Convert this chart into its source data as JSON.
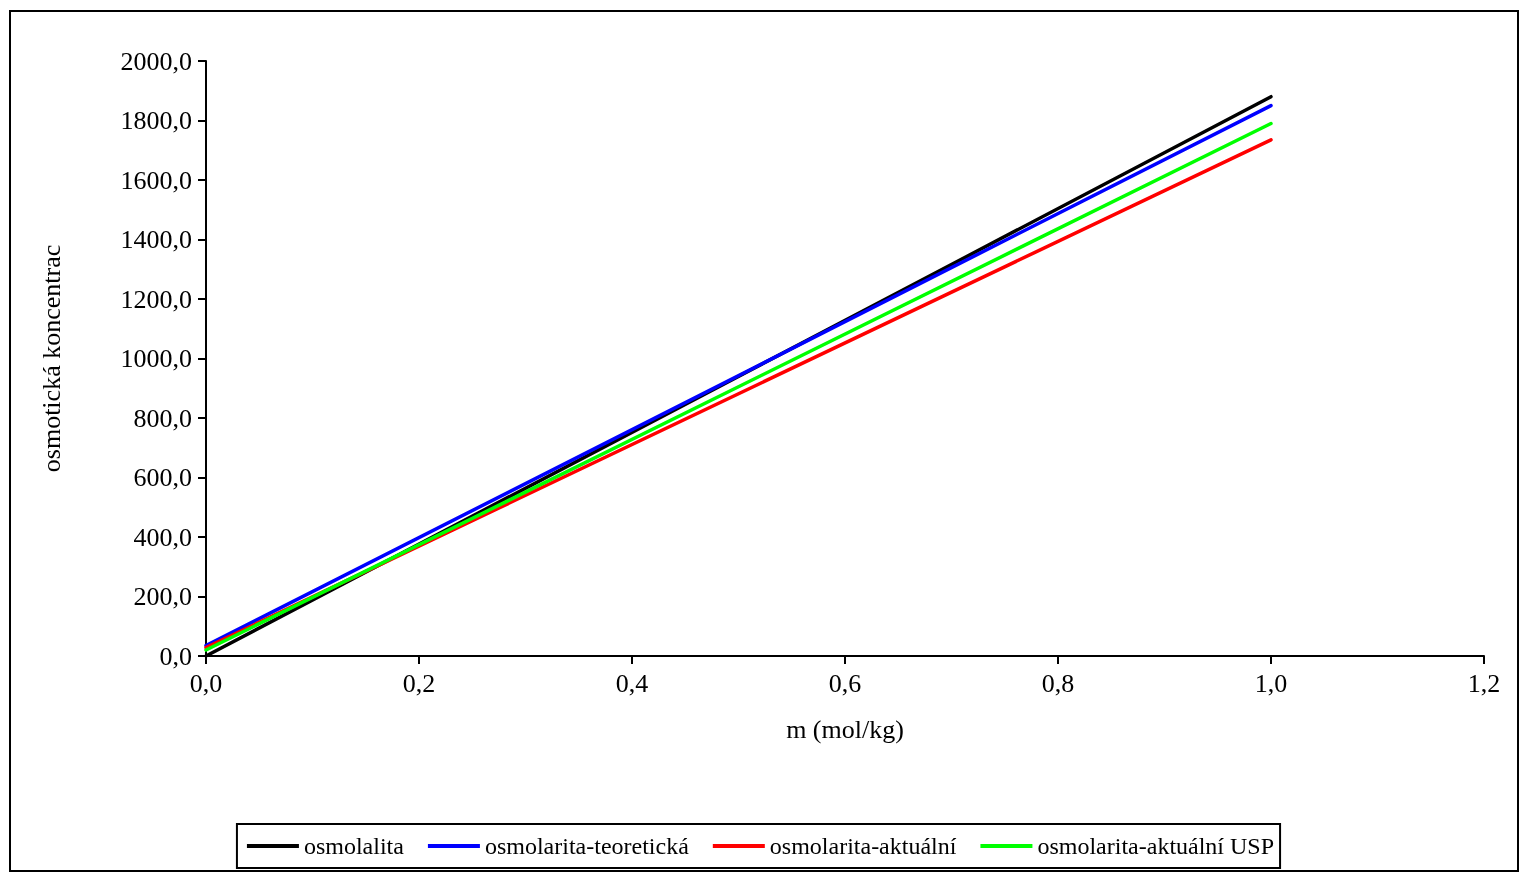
{
  "chart_data": {
    "type": "line",
    "xlabel": "m (mol/kg)",
    "ylabel": "osmotická koncentrac",
    "x": [
      0,
      1.0
    ],
    "series": [
      {
        "name": "osmolalita",
        "color": "#000000",
        "values": [
          0,
          1880
        ]
      },
      {
        "name": "osmolarita-teoretická",
        "color": "#0000ff",
        "values": [
          35,
          1850
        ]
      },
      {
        "name": "osmolarita-aktuální",
        "color": "#ff0000",
        "values": [
          28,
          1735
        ]
      },
      {
        "name": "osmolarita-aktuální USP",
        "color": "#00ff00",
        "values": [
          20,
          1790
        ]
      }
    ],
    "xlim": [
      0,
      1.2
    ],
    "xticks": [
      {
        "value": 0,
        "label": "0,0"
      },
      {
        "value": 0.2,
        "label": "0,2"
      },
      {
        "value": 0.4,
        "label": "0,4"
      },
      {
        "value": 0.6,
        "label": "0,6"
      },
      {
        "value": 0.8,
        "label": "0,8"
      },
      {
        "value": 1.0,
        "label": "1,0"
      },
      {
        "value": 1.2,
        "label": "1,2"
      }
    ],
    "ylim": [
      0,
      2000
    ],
    "yticks": [
      {
        "value": 0,
        "label": "0,0"
      },
      {
        "value": 200,
        "label": "200,0"
      },
      {
        "value": 400,
        "label": "400,0"
      },
      {
        "value": 600,
        "label": "600,0"
      },
      {
        "value": 800,
        "label": "800,0"
      },
      {
        "value": 1000,
        "label": "1000,0"
      },
      {
        "value": 1200,
        "label": "1200,0"
      },
      {
        "value": 1400,
        "label": "1400,0"
      },
      {
        "value": 1600,
        "label": "1600,0"
      },
      {
        "value": 1800,
        "label": "1800,0"
      },
      {
        "value": 2000,
        "label": "2000,0"
      }
    ],
    "grid": false,
    "legend": "bottom",
    "marker": "none",
    "line_style": "solid"
  }
}
